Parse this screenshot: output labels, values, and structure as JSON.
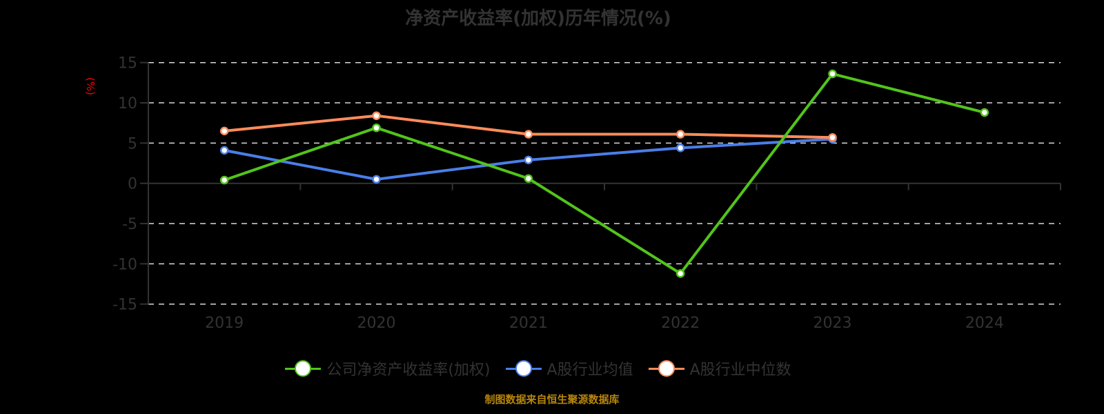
{
  "title": "净资产收益率(加权)历年情况(%)",
  "yaxis_label": "(%)",
  "footer": "制图数据来自恒生聚源数据库",
  "colors": {
    "company": "#52c41a",
    "industry_avg": "#4a7ee8",
    "industry_median": "#ff8c5a",
    "axis": "#333333",
    "grid": "#d9d9d9",
    "ylabel": "#ff0000",
    "footer": "#b8860b"
  },
  "legend": [
    {
      "label": "公司净资产收益率(加权)",
      "color": "#52c41a"
    },
    {
      "label": "A股行业均值",
      "color": "#4a7ee8"
    },
    {
      "label": "A股行业中位数",
      "color": "#ff8c5a"
    }
  ],
  "chart_data": {
    "type": "line",
    "title": "净资产收益率(加权)历年情况(%)",
    "xlabel": "",
    "ylabel": "(%)",
    "categories": [
      "2019",
      "2020",
      "2021",
      "2022",
      "2023",
      "2024"
    ],
    "ylim": [
      -15,
      15
    ],
    "yticks": [
      15,
      10,
      5,
      0,
      -5,
      -10,
      -15
    ],
    "grid": true,
    "legend_position": "bottom",
    "series": [
      {
        "name": "公司净资产收益率(加权)",
        "values": [
          0.4,
          6.9,
          0.6,
          -11.2,
          13.6,
          8.8
        ]
      },
      {
        "name": "A股行业均值",
        "values": [
          4.1,
          0.5,
          2.9,
          4.4,
          5.5,
          null
        ]
      },
      {
        "name": "A股行业中位数",
        "values": [
          6.5,
          8.4,
          6.1,
          6.1,
          5.7,
          null
        ]
      }
    ]
  }
}
